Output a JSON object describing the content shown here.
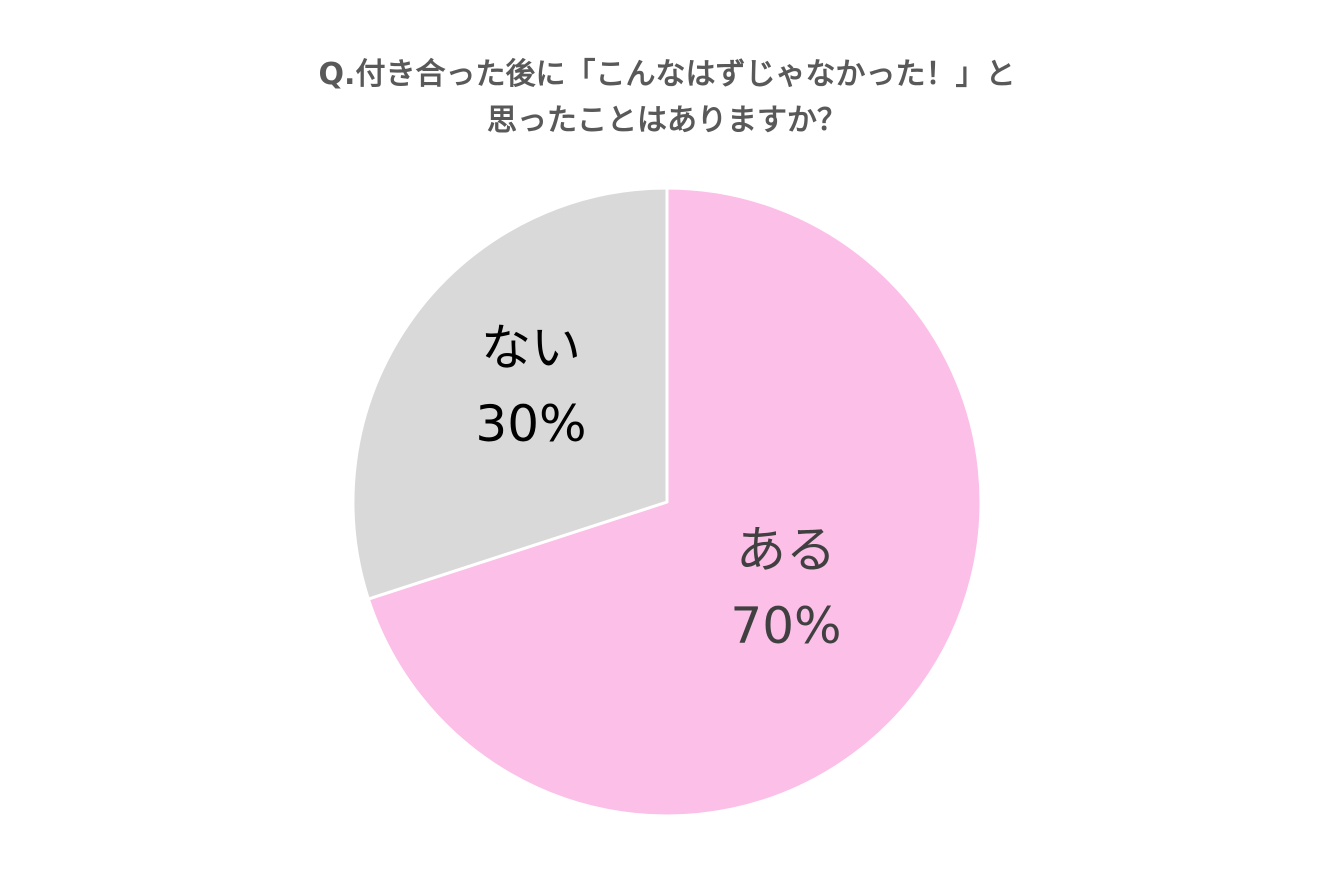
{
  "chart_data": {
    "type": "pie",
    "title_lines": [
      "Q.付き合った後に「こんなはずじゃなかった！」と",
      "思ったことはありますか？"
    ],
    "slices": [
      {
        "name": "ある",
        "value": 70,
        "label_value": "70%",
        "color": "#FBBFE8"
      },
      {
        "name": "ない",
        "value": 30,
        "label_value": "30%",
        "color": "#D9D9D9"
      }
    ],
    "start": "12 o'clock",
    "direction": "clockwise"
  }
}
